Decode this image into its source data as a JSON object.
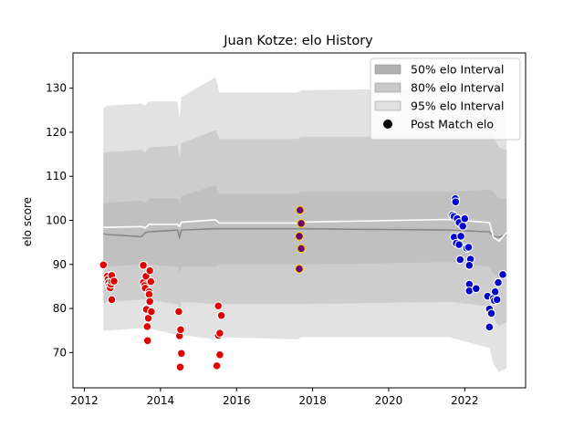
{
  "chart_data": {
    "type": "scatter",
    "title": "Juan Kotze: elo History",
    "xlabel": "",
    "ylabel": "elo score",
    "xlim": [
      2011.7,
      2023.6
    ],
    "ylim": [
      62,
      138
    ],
    "x_ticks": [
      2012,
      2014,
      2016,
      2018,
      2020,
      2022
    ],
    "x_tick_labels": [
      "2012",
      "2014",
      "2016",
      "2018",
      "2020",
      "2022"
    ],
    "y_ticks": [
      70,
      80,
      90,
      100,
      110,
      120,
      130
    ],
    "y_tick_labels": [
      "70",
      "80",
      "90",
      "100",
      "110",
      "120",
      "130"
    ],
    "grid": false,
    "legend_position": "top-right",
    "legend": [
      {
        "label": "50% elo Interval",
        "kind": "patch",
        "color": "#b0b0b0"
      },
      {
        "label": "80% elo Interval",
        "kind": "patch",
        "color": "#c8c8c8"
      },
      {
        "label": "95% elo Interval",
        "kind": "patch",
        "color": "#e2e2e2"
      },
      {
        "label": "Post Match elo",
        "kind": "marker",
        "color": "#000000"
      }
    ],
    "colors": {
      "band_95": "#e2e2e2",
      "band_80": "#cdcdcd",
      "band_50": "#c0c0c0",
      "mean_line": "#888888",
      "median_line": "#ffffff"
    },
    "intervals": {
      "x": [
        2012.5,
        2012.6,
        2013.5,
        2013.6,
        2013.7,
        2014.45,
        2014.5,
        2014.55,
        2015.45,
        2015.55,
        2017.6,
        2017.7,
        2021.6,
        2022.65,
        2022.75,
        2022.9,
        2023.1
      ],
      "band95_low": [
        75,
        75,
        75.5,
        75.5,
        75.5,
        74,
        72,
        74,
        73,
        73.5,
        73,
        73.5,
        73.5,
        71,
        67.5,
        65.5,
        66.5
      ],
      "band95_high": [
        125.5,
        126,
        126.5,
        126,
        127,
        127,
        123,
        128,
        132.5,
        129,
        129,
        129.5,
        130,
        131,
        130,
        128,
        127
      ],
      "band80_low": [
        81,
        81.5,
        82,
        82,
        82,
        81,
        79.5,
        81.5,
        81,
        81,
        81,
        81,
        81.5,
        80.5,
        78,
        76,
        77
      ],
      "band80_high": [
        115.5,
        115.5,
        116,
        115.5,
        116.5,
        117,
        114,
        117.5,
        120.5,
        118.5,
        118.5,
        119,
        119,
        120,
        119,
        116.5,
        116
      ],
      "band50_low": [
        89.5,
        89.5,
        90,
        89.5,
        90,
        89.5,
        88,
        89.5,
        89.5,
        90,
        90,
        90,
        90.5,
        89.5,
        88,
        87,
        87.5
      ],
      "band50_high": [
        104,
        104,
        104.5,
        104,
        105,
        105,
        103.5,
        105.5,
        108,
        106,
        106,
        106.5,
        106.5,
        107,
        106.5,
        105,
        105
      ],
      "mean": [
        97,
        96.8,
        96.3,
        97.2,
        97.4,
        97.8,
        96.2,
        97.8,
        98.1,
        98.1,
        98.1,
        98.1,
        97.8,
        97.4,
        96.4,
        96.2,
        96.8
      ],
      "median": [
        98.4,
        98.4,
        98.6,
        98.3,
        99.1,
        99.1,
        98.6,
        99.6,
        100.1,
        99.4,
        99.4,
        99.6,
        100.2,
        99.5,
        96.2,
        95.3,
        97.2
      ]
    },
    "series": [
      {
        "color": "#e00000",
        "edge": "#ffffff",
        "points": [
          [
            2012.5,
            89.9
          ],
          [
            2012.6,
            87.3
          ],
          [
            2012.62,
            86.6
          ],
          [
            2012.64,
            85.9
          ],
          [
            2012.66,
            85.2
          ],
          [
            2012.68,
            84.7
          ],
          [
            2012.7,
            85.5
          ],
          [
            2012.72,
            86.2
          ],
          [
            2012.72,
            87.5
          ],
          [
            2012.72,
            82.0
          ],
          [
            2012.78,
            86.2
          ],
          [
            2013.55,
            89.8
          ],
          [
            2013.55,
            85.9
          ],
          [
            2013.58,
            85.2
          ],
          [
            2013.6,
            84.6
          ],
          [
            2013.62,
            87.3
          ],
          [
            2013.63,
            79.8
          ],
          [
            2013.65,
            75.9
          ],
          [
            2013.66,
            72.7
          ],
          [
            2013.68,
            77.8
          ],
          [
            2013.7,
            83.8
          ],
          [
            2013.7,
            83.2
          ],
          [
            2013.72,
            81.6
          ],
          [
            2013.72,
            88.6
          ],
          [
            2013.75,
            86.1
          ],
          [
            2013.76,
            79.3
          ],
          [
            2014.48,
            79.3
          ],
          [
            2014.5,
            73.8
          ],
          [
            2014.53,
            75.2
          ],
          [
            2014.55,
            69.8
          ],
          [
            2014.52,
            66.7
          ],
          [
            2015.48,
            67.0
          ],
          [
            2015.52,
            80.6
          ],
          [
            2015.52,
            73.9
          ],
          [
            2015.56,
            74.4
          ],
          [
            2015.56,
            69.5
          ],
          [
            2015.6,
            78.4
          ]
        ]
      },
      {
        "color": "#6a007a",
        "edge": "#ffd400",
        "points": [
          [
            2017.67,
            102.3
          ],
          [
            2017.7,
            99.3
          ],
          [
            2017.65,
            96.4
          ],
          [
            2017.7,
            93.6
          ],
          [
            2017.65,
            89.0
          ]
        ]
      },
      {
        "color": "#0000cc",
        "edge": "#ffffff",
        "points": [
          [
            2021.68,
            101.2
          ],
          [
            2021.72,
            100.9
          ],
          [
            2021.75,
            104.9
          ],
          [
            2021.76,
            104.2
          ],
          [
            2021.8,
            100.4
          ],
          [
            2021.85,
            99.5
          ],
          [
            2021.72,
            96.2
          ],
          [
            2021.78,
            94.8
          ],
          [
            2021.85,
            94.5
          ],
          [
            2021.9,
            96.4
          ],
          [
            2021.95,
            98.7
          ],
          [
            2022.0,
            100.4
          ],
          [
            2022.05,
            93.7
          ],
          [
            2022.1,
            93.9
          ],
          [
            2021.88,
            91.1
          ],
          [
            2022.15,
            91.2
          ],
          [
            2022.12,
            89.8
          ],
          [
            2022.12,
            85.5
          ],
          [
            2022.12,
            84.0
          ],
          [
            2022.3,
            84.5
          ],
          [
            2022.6,
            82.8
          ],
          [
            2022.65,
            79.9
          ],
          [
            2022.7,
            78.9
          ],
          [
            2022.75,
            82.3
          ],
          [
            2022.78,
            81.8
          ],
          [
            2022.8,
            83.8
          ],
          [
            2022.85,
            82.0
          ],
          [
            2022.88,
            85.9
          ],
          [
            2022.65,
            75.8
          ],
          [
            2023.0,
            87.7
          ]
        ]
      }
    ]
  }
}
